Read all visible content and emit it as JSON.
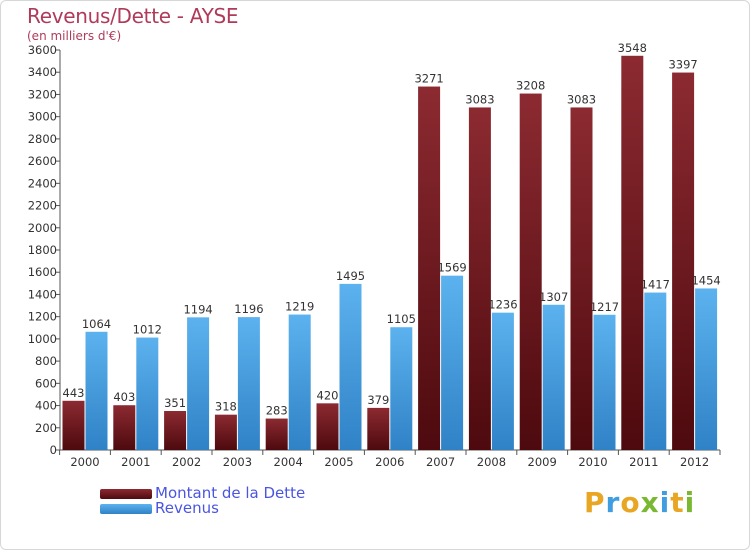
{
  "header": {
    "title": "Revenus/Dette - AYSE",
    "subtitle": "(en milliers d'€)"
  },
  "brand": {
    "text": "Proxiti"
  },
  "chart_data": {
    "type": "bar",
    "categories": [
      "2000",
      "2001",
      "2002",
      "2003",
      "2004",
      "2005",
      "2006",
      "2007",
      "2008",
      "2009",
      "2010",
      "2011",
      "2012"
    ],
    "series": [
      {
        "name": "Montant de la Dette",
        "color": "#7a1f24",
        "values": [
          443,
          403,
          351,
          318,
          283,
          420,
          379,
          3271,
          3083,
          3208,
          3083,
          3548,
          3397
        ]
      },
      {
        "name": "Revenus",
        "color": "#3f9de0",
        "values": [
          1064,
          1012,
          1194,
          1196,
          1219,
          1495,
          1105,
          1569,
          1236,
          1307,
          1217,
          1417,
          1454
        ]
      }
    ],
    "ylim": [
      0,
      3600
    ],
    "yticks": [
      0,
      200,
      400,
      600,
      800,
      1000,
      1200,
      1400,
      1600,
      1800,
      2000,
      2200,
      2400,
      2600,
      2800,
      3000,
      3200,
      3400,
      3600
    ],
    "grid": false,
    "legend": "bottom-left"
  }
}
